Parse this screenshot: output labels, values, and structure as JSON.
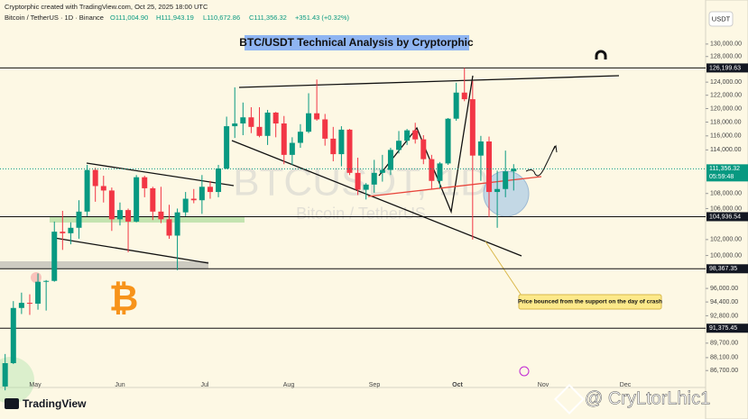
{
  "header": {
    "attribution": "Cryptorphic created with TradingView.com, Oct 25, 2025 18:00 UTC",
    "symbol": "Bitcoin / TetherUS · 1D · Binance",
    "open": "O111,004.90",
    "high": "H111,943.19",
    "low": "L110,672.86",
    "close": "C111,356.32",
    "change": "+351.43 (+0.32%)"
  },
  "chart_data": {
    "type": "candlestick",
    "title": "BTC/USDT Technical Analysis by Cryptorphic",
    "currency": "USDT",
    "watermark": "BTCUSDT, 1D",
    "watermark_sub": "Bitcoin / TetherUS",
    "open": [
      85000,
      87500,
      93700,
      94300,
      94200,
      96800,
      96900,
      103000,
      102800,
      103500,
      105600,
      111200,
      109000,
      108400,
      104600,
      105800,
      104300,
      110200,
      108700,
      105600,
      104600,
      102500,
      105500,
      107300,
      107100,
      108900,
      108200,
      111400,
      117400,
      117800,
      118700,
      117300,
      116000,
      119400,
      117800,
      113300,
      115000,
      116600,
      119300,
      118400,
      115600,
      113400,
      116900,
      110800,
      108500,
      109200,
      110800,
      111200,
      114000,
      115300,
      116800,
      115500,
      112700,
      109700,
      112100,
      118500,
      122400,
      121400,
      113200,
      115200,
      108200,
      108600,
      111000
    ],
    "high": [
      88500,
      94500,
      95500,
      95300,
      97800,
      97000,
      104300,
      105700,
      104200,
      107100,
      111900,
      111500,
      110400,
      108800,
      106800,
      106000,
      110500,
      110400,
      108900,
      108900,
      106500,
      106000,
      108200,
      108600,
      110500,
      109700,
      111900,
      118800,
      123200,
      120900,
      120200,
      120200,
      119800,
      119500,
      118900,
      115800,
      117700,
      122300,
      124400,
      119200,
      117300,
      117400,
      117000,
      112900,
      109400,
      112600,
      113300,
      114300,
      116700,
      117000,
      117900,
      116100,
      113300,
      112300,
      118600,
      123900,
      126200,
      124200,
      116000,
      115900,
      111100,
      113900,
      112000
    ],
    "low": [
      84600,
      87400,
      93000,
      92900,
      93500,
      93400,
      96800,
      100700,
      101400,
      102100,
      105000,
      106900,
      106800,
      103100,
      103800,
      100400,
      104200,
      107500,
      104500,
      104100,
      102100,
      98200,
      105000,
      106700,
      105300,
      107300,
      107500,
      111300,
      115700,
      116100,
      116400,
      115800,
      114700,
      115800,
      112000,
      111900,
      114300,
      116400,
      118200,
      114600,
      112400,
      111700,
      110500,
      107800,
      107200,
      108100,
      109600,
      110500,
      113500,
      114700,
      114900,
      112000,
      108600,
      108700,
      111900,
      118200,
      121100,
      102000,
      109700,
      104900,
      103500,
      107500,
      108400
    ],
    "close": [
      87500,
      93700,
      94300,
      94200,
      96800,
      96900,
      103000,
      102800,
      103500,
      105600,
      111200,
      109000,
      108400,
      104600,
      105800,
      104300,
      110200,
      108700,
      105600,
      104600,
      102500,
      105500,
      107300,
      107100,
      108900,
      108200,
      111400,
      117400,
      117800,
      118700,
      117300,
      116000,
      119400,
      117800,
      113300,
      115000,
      116600,
      119300,
      118400,
      115600,
      113400,
      116900,
      110800,
      108500,
      109200,
      110800,
      111200,
      114000,
      115300,
      116800,
      115500,
      112700,
      109700,
      112100,
      118500,
      122400,
      121400,
      113200,
      115200,
      108200,
      108600,
      111000,
      111356.32
    ],
    "up_color": "#089981",
    "down_color": "#f23645",
    "log_scale": true,
    "ylim": [
      84900,
      137300
    ],
    "yticks": [
      {
        "value": 130000,
        "label": "130,000.00"
      },
      {
        "value": 128000,
        "label": "128,000.00"
      },
      {
        "value": 124000,
        "label": "124,000.00"
      },
      {
        "value": 122000,
        "label": "122,000.00"
      },
      {
        "value": 120000,
        "label": "120,000.00"
      },
      {
        "value": 118000,
        "label": "118,000.00"
      },
      {
        "value": 116000,
        "label": "116,000.00"
      },
      {
        "value": 114000,
        "label": "114,000.00"
      },
      {
        "value": 108000,
        "label": "108,000.00"
      },
      {
        "value": 106000,
        "label": "106,000.00"
      },
      {
        "value": 102000,
        "label": "102,000.00"
      },
      {
        "value": 100000,
        "label": "100,000.00"
      },
      {
        "value": 96000,
        "label": "96,000.00"
      },
      {
        "value": 94400,
        "label": "94,400.00"
      },
      {
        "value": 92800,
        "label": "92,800.00"
      },
      {
        "value": 89700,
        "label": "89,700.00"
      },
      {
        "value": 88100,
        "label": "88,100.00"
      },
      {
        "value": 86700,
        "label": "86,700.00"
      }
    ],
    "months": [
      "May",
      "Jun",
      "Jul",
      "Aug",
      "Sep",
      "Oct",
      "Nov",
      "Dec"
    ],
    "levels": [
      {
        "value": 126199.63,
        "label": "126,199.63"
      },
      {
        "value": 104936.54,
        "label": "104,936.54"
      },
      {
        "value": 98367.35,
        "label": "98,367.35"
      },
      {
        "value": 91375.45,
        "label": "91,375.45"
      }
    ],
    "last_price": {
      "value": 111356.32,
      "label": "111,356.32"
    },
    "countdown": "05:59:48",
    "annotation": "Price bounced from the support on the day of crash"
  },
  "footer": {
    "brand": "TradingView",
    "handle": "@ CryLtorLhic1"
  }
}
